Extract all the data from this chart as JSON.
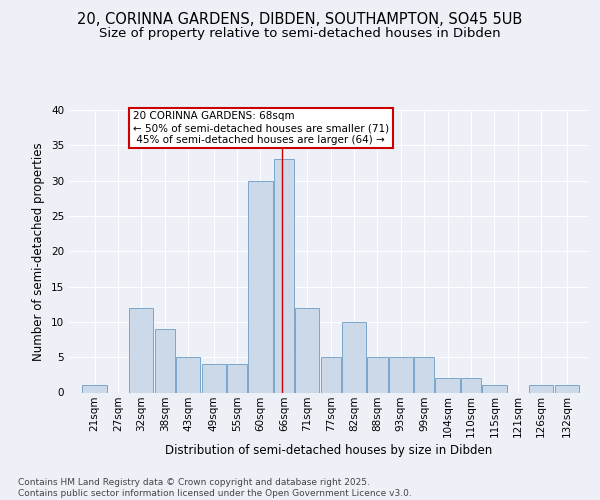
{
  "title1": "20, CORINNA GARDENS, DIBDEN, SOUTHAMPTON, SO45 5UB",
  "title2": "Size of property relative to semi-detached houses in Dibden",
  "xlabel": "Distribution of semi-detached houses by size in Dibden",
  "ylabel": "Number of semi-detached properties",
  "bin_labels": [
    "21sqm",
    "27sqm",
    "32sqm",
    "38sqm",
    "43sqm",
    "49sqm",
    "55sqm",
    "60sqm",
    "66sqm",
    "71sqm",
    "77sqm",
    "82sqm",
    "88sqm",
    "93sqm",
    "99sqm",
    "104sqm",
    "110sqm",
    "115sqm",
    "121sqm",
    "126sqm",
    "132sqm"
  ],
  "bin_edges": [
    21,
    27,
    32,
    38,
    43,
    49,
    55,
    60,
    66,
    71,
    77,
    82,
    88,
    93,
    99,
    104,
    110,
    115,
    121,
    126,
    132
  ],
  "bar_heights": [
    1,
    0,
    12,
    9,
    5,
    4,
    4,
    30,
    33,
    12,
    5,
    10,
    5,
    5,
    5,
    2,
    2,
    1,
    0,
    1,
    1
  ],
  "bar_color": "#ccd9e8",
  "bar_edge_color": "#6a9dc8",
  "property_value": 68,
  "pct_smaller": 50,
  "n_smaller": 71,
  "pct_larger": 45,
  "n_larger": 64,
  "ref_line_color": "#cc0000",
  "annotation_box_edgecolor": "#cc0000",
  "ylim": [
    0,
    40
  ],
  "yticks": [
    0,
    5,
    10,
    15,
    20,
    25,
    30,
    35,
    40
  ],
  "background_color": "#edf1f7",
  "grid_color": "#ffffff",
  "footer": "Contains HM Land Registry data © Crown copyright and database right 2025.\nContains public sector information licensed under the Open Government Licence v3.0.",
  "title1_fontsize": 10.5,
  "title2_fontsize": 9.5,
  "axis_label_fontsize": 8.5,
  "tick_fontsize": 7.5,
  "footer_fontsize": 6.5,
  "annot_fontsize": 7.5
}
